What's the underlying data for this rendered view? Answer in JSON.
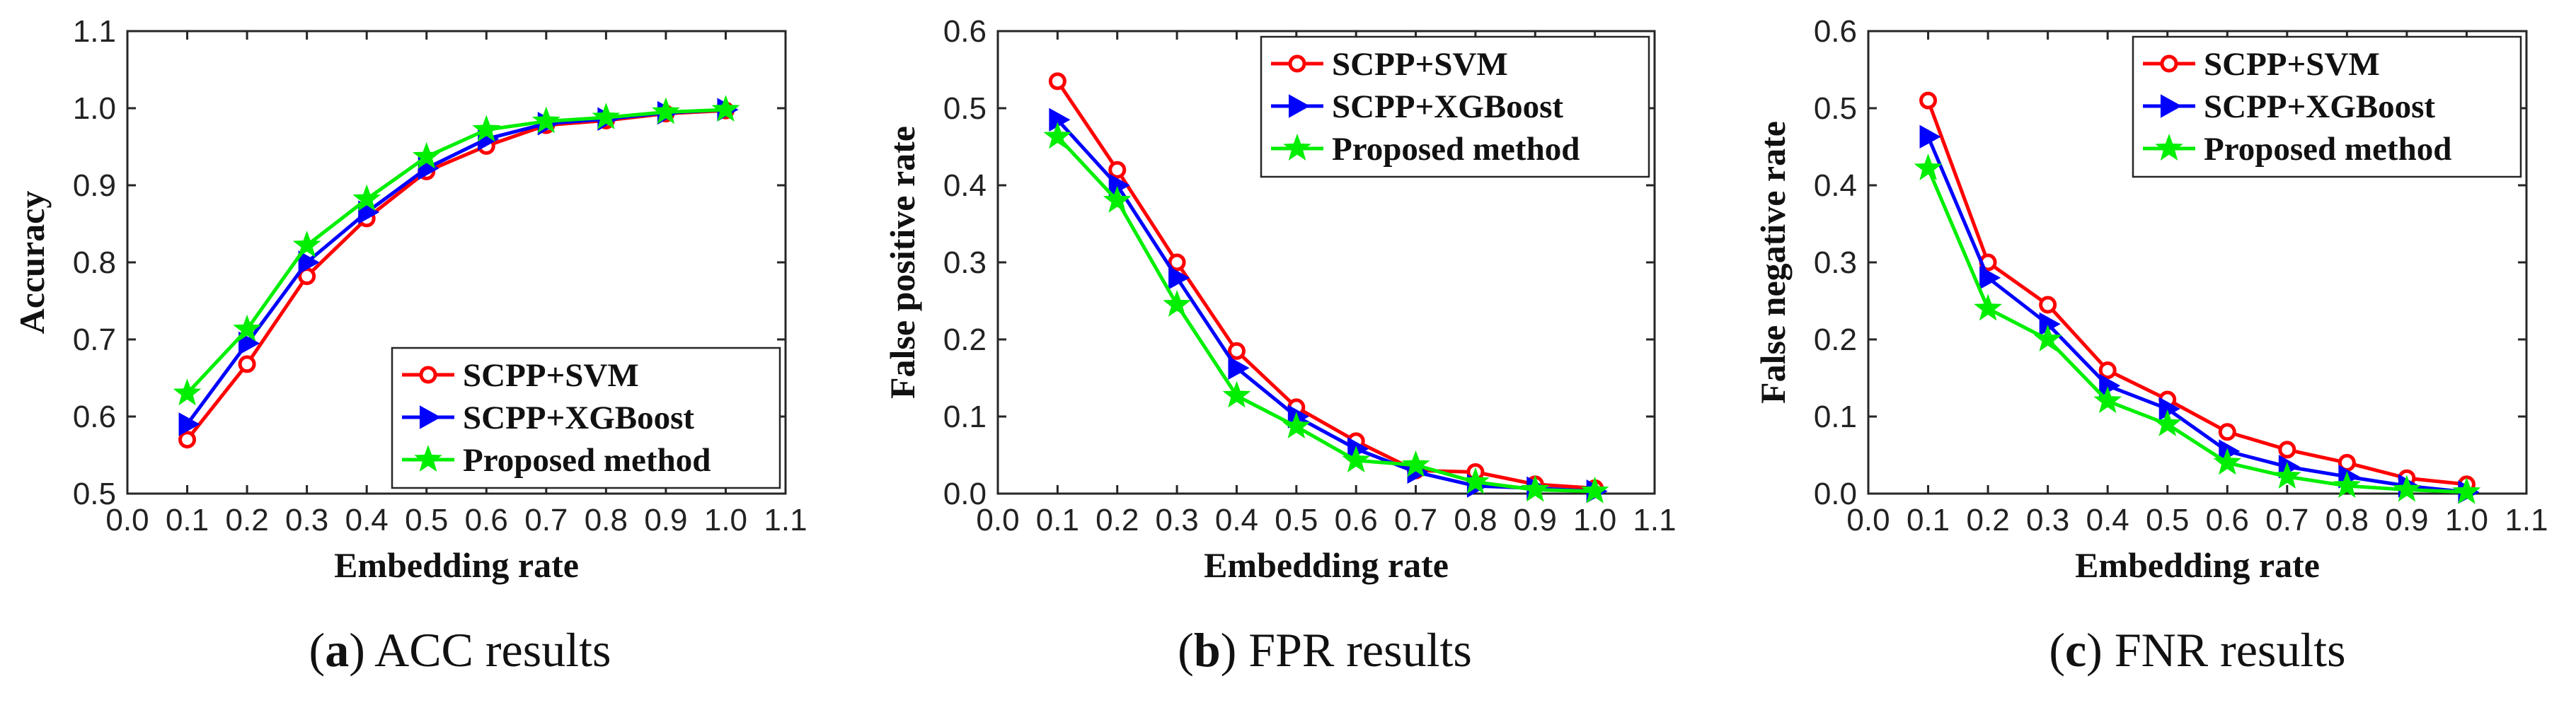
{
  "colors": {
    "series_0": "#ff0000",
    "series_1": "#0000ff",
    "series_2": "#00ee00"
  },
  "chart_data": [
    {
      "type": "line",
      "caption_letter": "a",
      "caption_text": "ACC results",
      "xlabel": "Embedding rate",
      "ylabel": "Accuracy",
      "xlim": [
        0.0,
        1.1
      ],
      "ylim": [
        0.5,
        1.1
      ],
      "xticks": [
        "0.0",
        "0.1",
        "0.2",
        "0.3",
        "0.4",
        "0.5",
        "0.6",
        "0.7",
        "0.8",
        "0.9",
        "1.0",
        "1.1"
      ],
      "yticks": [
        "0.5",
        "0.6",
        "0.7",
        "0.8",
        "0.9",
        "1.0",
        "1.1"
      ],
      "legend_position": "bottom-right",
      "x": [
        0.1,
        0.2,
        0.3,
        0.4,
        0.5,
        0.6,
        0.7,
        0.8,
        0.9,
        1.0
      ],
      "series": [
        {
          "name": "SCPP+SVM",
          "marker": "circle",
          "values": [
            0.57,
            0.668,
            0.782,
            0.857,
            0.918,
            0.951,
            0.978,
            0.984,
            0.993,
            0.997
          ]
        },
        {
          "name": "SCPP+XGBoost",
          "marker": "triangle-right",
          "values": [
            0.59,
            0.695,
            0.8,
            0.865,
            0.922,
            0.96,
            0.98,
            0.986,
            0.994,
            0.998
          ]
        },
        {
          "name": "Proposed method",
          "marker": "star",
          "values": [
            0.63,
            0.713,
            0.822,
            0.882,
            0.937,
            0.972,
            0.983,
            0.988,
            0.995,
            0.998
          ]
        }
      ]
    },
    {
      "type": "line",
      "caption_letter": "b",
      "caption_text": "FPR results",
      "xlabel": "Embedding rate",
      "ylabel": "False positive rate",
      "xlim": [
        0.0,
        1.1
      ],
      "ylim": [
        0.0,
        0.6
      ],
      "xticks": [
        "0.0",
        "0.1",
        "0.2",
        "0.3",
        "0.4",
        "0.5",
        "0.6",
        "0.7",
        "0.8",
        "0.9",
        "1.0",
        "1.1"
      ],
      "yticks": [
        "0.0",
        "0.1",
        "0.2",
        "0.3",
        "0.4",
        "0.5",
        "0.6"
      ],
      "legend_position": "top-right",
      "x": [
        0.1,
        0.2,
        0.3,
        0.4,
        0.5,
        0.6,
        0.7,
        0.8,
        0.9,
        1.0
      ],
      "series": [
        {
          "name": "SCPP+SVM",
          "marker": "circle",
          "values": [
            0.535,
            0.42,
            0.3,
            0.185,
            0.112,
            0.068,
            0.03,
            0.028,
            0.012,
            0.007
          ]
        },
        {
          "name": "SCPP+XGBoost",
          "marker": "triangle-right",
          "values": [
            0.485,
            0.4,
            0.28,
            0.163,
            0.1,
            0.058,
            0.028,
            0.01,
            0.007,
            0.003
          ]
        },
        {
          "name": "Proposed method",
          "marker": "star",
          "values": [
            0.463,
            0.38,
            0.245,
            0.127,
            0.087,
            0.043,
            0.037,
            0.015,
            0.005,
            0.003
          ]
        }
      ]
    },
    {
      "type": "line",
      "caption_letter": "c",
      "caption_text": "FNR results",
      "xlabel": "Embedding rate",
      "ylabel": "False negative rate",
      "xlim": [
        0.0,
        1.1
      ],
      "ylim": [
        0.0,
        0.6
      ],
      "xticks": [
        "0.0",
        "0.1",
        "0.2",
        "0.3",
        "0.4",
        "0.5",
        "0.6",
        "0.7",
        "0.8",
        "0.9",
        "1.0",
        "1.1"
      ],
      "yticks": [
        "0.0",
        "0.1",
        "0.2",
        "0.3",
        "0.4",
        "0.5",
        "0.6"
      ],
      "legend_position": "top-right",
      "x": [
        0.1,
        0.2,
        0.3,
        0.4,
        0.5,
        0.6,
        0.7,
        0.8,
        0.9,
        1.0
      ],
      "series": [
        {
          "name": "SCPP+SVM",
          "marker": "circle",
          "values": [
            0.51,
            0.3,
            0.245,
            0.16,
            0.122,
            0.08,
            0.057,
            0.04,
            0.02,
            0.012
          ]
        },
        {
          "name": "SCPP+XGBoost",
          "marker": "triangle-right",
          "values": [
            0.463,
            0.28,
            0.22,
            0.14,
            0.11,
            0.055,
            0.035,
            0.022,
            0.01,
            0.002
          ]
        },
        {
          "name": "Proposed method",
          "marker": "star",
          "values": [
            0.422,
            0.24,
            0.2,
            0.12,
            0.09,
            0.04,
            0.022,
            0.01,
            0.005,
            0.002
          ]
        }
      ]
    }
  ]
}
